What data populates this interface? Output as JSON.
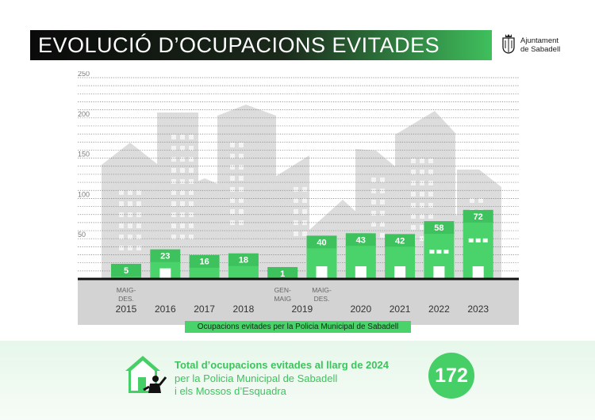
{
  "header": {
    "title": "EVOLUCIÓ D’OCUPACIONS EVITADES",
    "logo_line1": "Ajuntament",
    "logo_line2": "de Sabadell"
  },
  "chart_data": {
    "type": "bar",
    "title": "EVOLUCIÓ D’OCUPACIONS EVITADES",
    "ylim": [
      0,
      250
    ],
    "yticks": [
      50,
      100,
      150,
      200,
      250
    ],
    "grid": true,
    "categories": [
      {
        "top": "MAIG-",
        "mid": "DES.",
        "year": "2015"
      },
      {
        "top": "",
        "mid": "",
        "year": "2016"
      },
      {
        "top": "",
        "mid": "",
        "year": "2017"
      },
      {
        "top": "",
        "mid": "",
        "year": "2018"
      },
      {
        "top": "GEN-",
        "mid": "MAIG",
        "year": ""
      },
      {
        "top": "MAIG-",
        "mid": "DES.",
        "year": ""
      },
      {
        "top": "",
        "mid": "",
        "year": "2020"
      },
      {
        "top": "",
        "mid": "",
        "year": "2021"
      },
      {
        "top": "",
        "mid": "",
        "year": "2022"
      },
      {
        "top": "",
        "mid": "",
        "year": "2023"
      }
    ],
    "shared_year_label": "2019",
    "values": [
      5,
      23,
      16,
      18,
      1,
      40,
      43,
      42,
      58,
      72
    ],
    "legend": "Ocupacions evitades per la Policia Municipal de Sabadell",
    "bar_color": "#4ad36b"
  },
  "footer": {
    "total_title": "Total d’ocupacions evitades al llarg de 2024",
    "total_line2": "per la Policia Municipal de Sabadell",
    "total_line3": "i els Mossos d’Esquadra",
    "total_value": "172"
  }
}
